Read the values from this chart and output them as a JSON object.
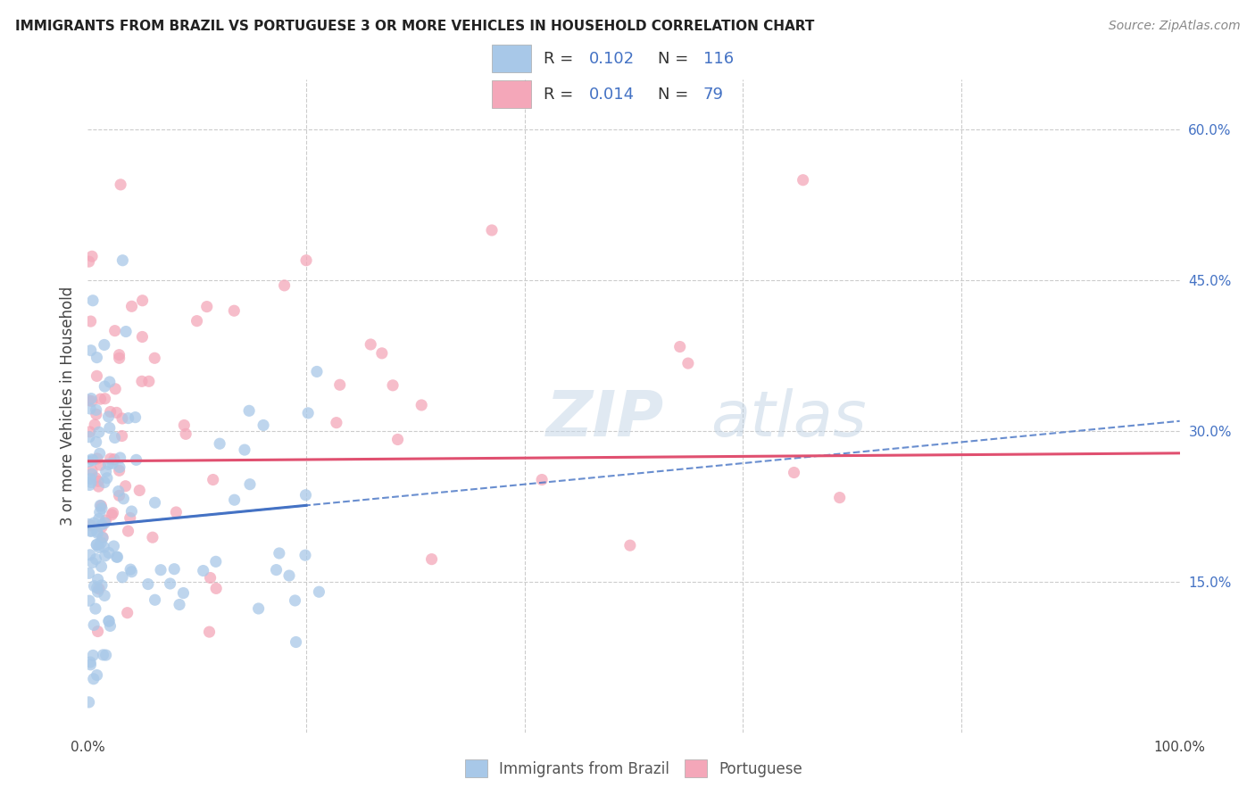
{
  "title": "IMMIGRANTS FROM BRAZIL VS PORTUGUESE 3 OR MORE VEHICLES IN HOUSEHOLD CORRELATION CHART",
  "source": "Source: ZipAtlas.com",
  "ylabel": "3 or more Vehicles in Household",
  "xlim": [
    0,
    1.0
  ],
  "ylim": [
    0,
    0.65
  ],
  "brazil_R": 0.102,
  "brazil_N": 116,
  "portuguese_R": 0.014,
  "portuguese_N": 79,
  "brazil_color": "#a8c8e8",
  "brazil_line_color": "#4472c4",
  "portuguese_color": "#f4a7b9",
  "portuguese_line_color": "#e05070",
  "grid_color": "#cccccc",
  "right_tick_color": "#4472c4",
  "title_color": "#222222",
  "source_color": "#888888",
  "ylabel_color": "#444444",
  "xtick_color": "#444444",
  "watermark_color": "#d0dce8",
  "brazil_intercept": 0.205,
  "brazil_slope": 0.105,
  "port_intercept": 0.27,
  "port_slope": 0.008
}
